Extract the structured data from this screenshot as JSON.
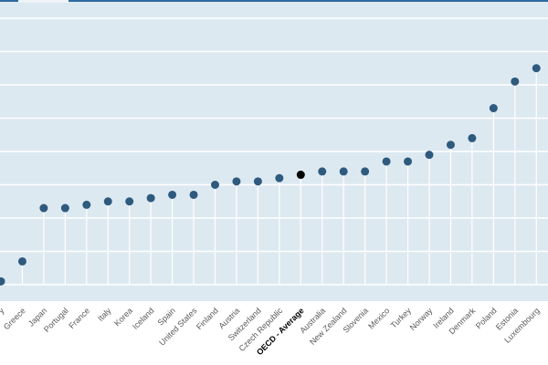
{
  "chart_data": {
    "type": "lollipop",
    "title": "",
    "xlabel": "",
    "ylabel": "",
    "ylim": [
      0,
      8.5
    ],
    "grid": true,
    "categories": [
      "y",
      "Greece",
      "Japan",
      "Portugal",
      "France",
      "Italy",
      "Korea",
      "Iceland",
      "Spain",
      "United States",
      "Finland",
      "Austria",
      "Switzerland",
      "Czech Republic",
      "OECD - Average",
      "Australia",
      "New Zealand",
      "Slovenia",
      "Mexico",
      "Turkey",
      "Norway",
      "Ireland",
      "Denmark",
      "Poland",
      "Estonia",
      "Luxembourg"
    ],
    "values": [
      0.1,
      0.7,
      2.3,
      2.3,
      2.4,
      2.5,
      2.5,
      2.6,
      2.7,
      2.7,
      3.0,
      3.1,
      3.1,
      3.2,
      3.3,
      3.4,
      3.4,
      3.4,
      3.7,
      3.7,
      3.9,
      4.2,
      4.4,
      5.3,
      6.1,
      6.5
    ],
    "highlight": "OECD - Average",
    "colors": {
      "background": "#dde9f1",
      "dot": "#2e5a7e",
      "highlight": "#000000",
      "stem": "#ffffff",
      "grid": "#ffffff",
      "label": "#595959",
      "top_rule": "#2e6a9e"
    }
  }
}
